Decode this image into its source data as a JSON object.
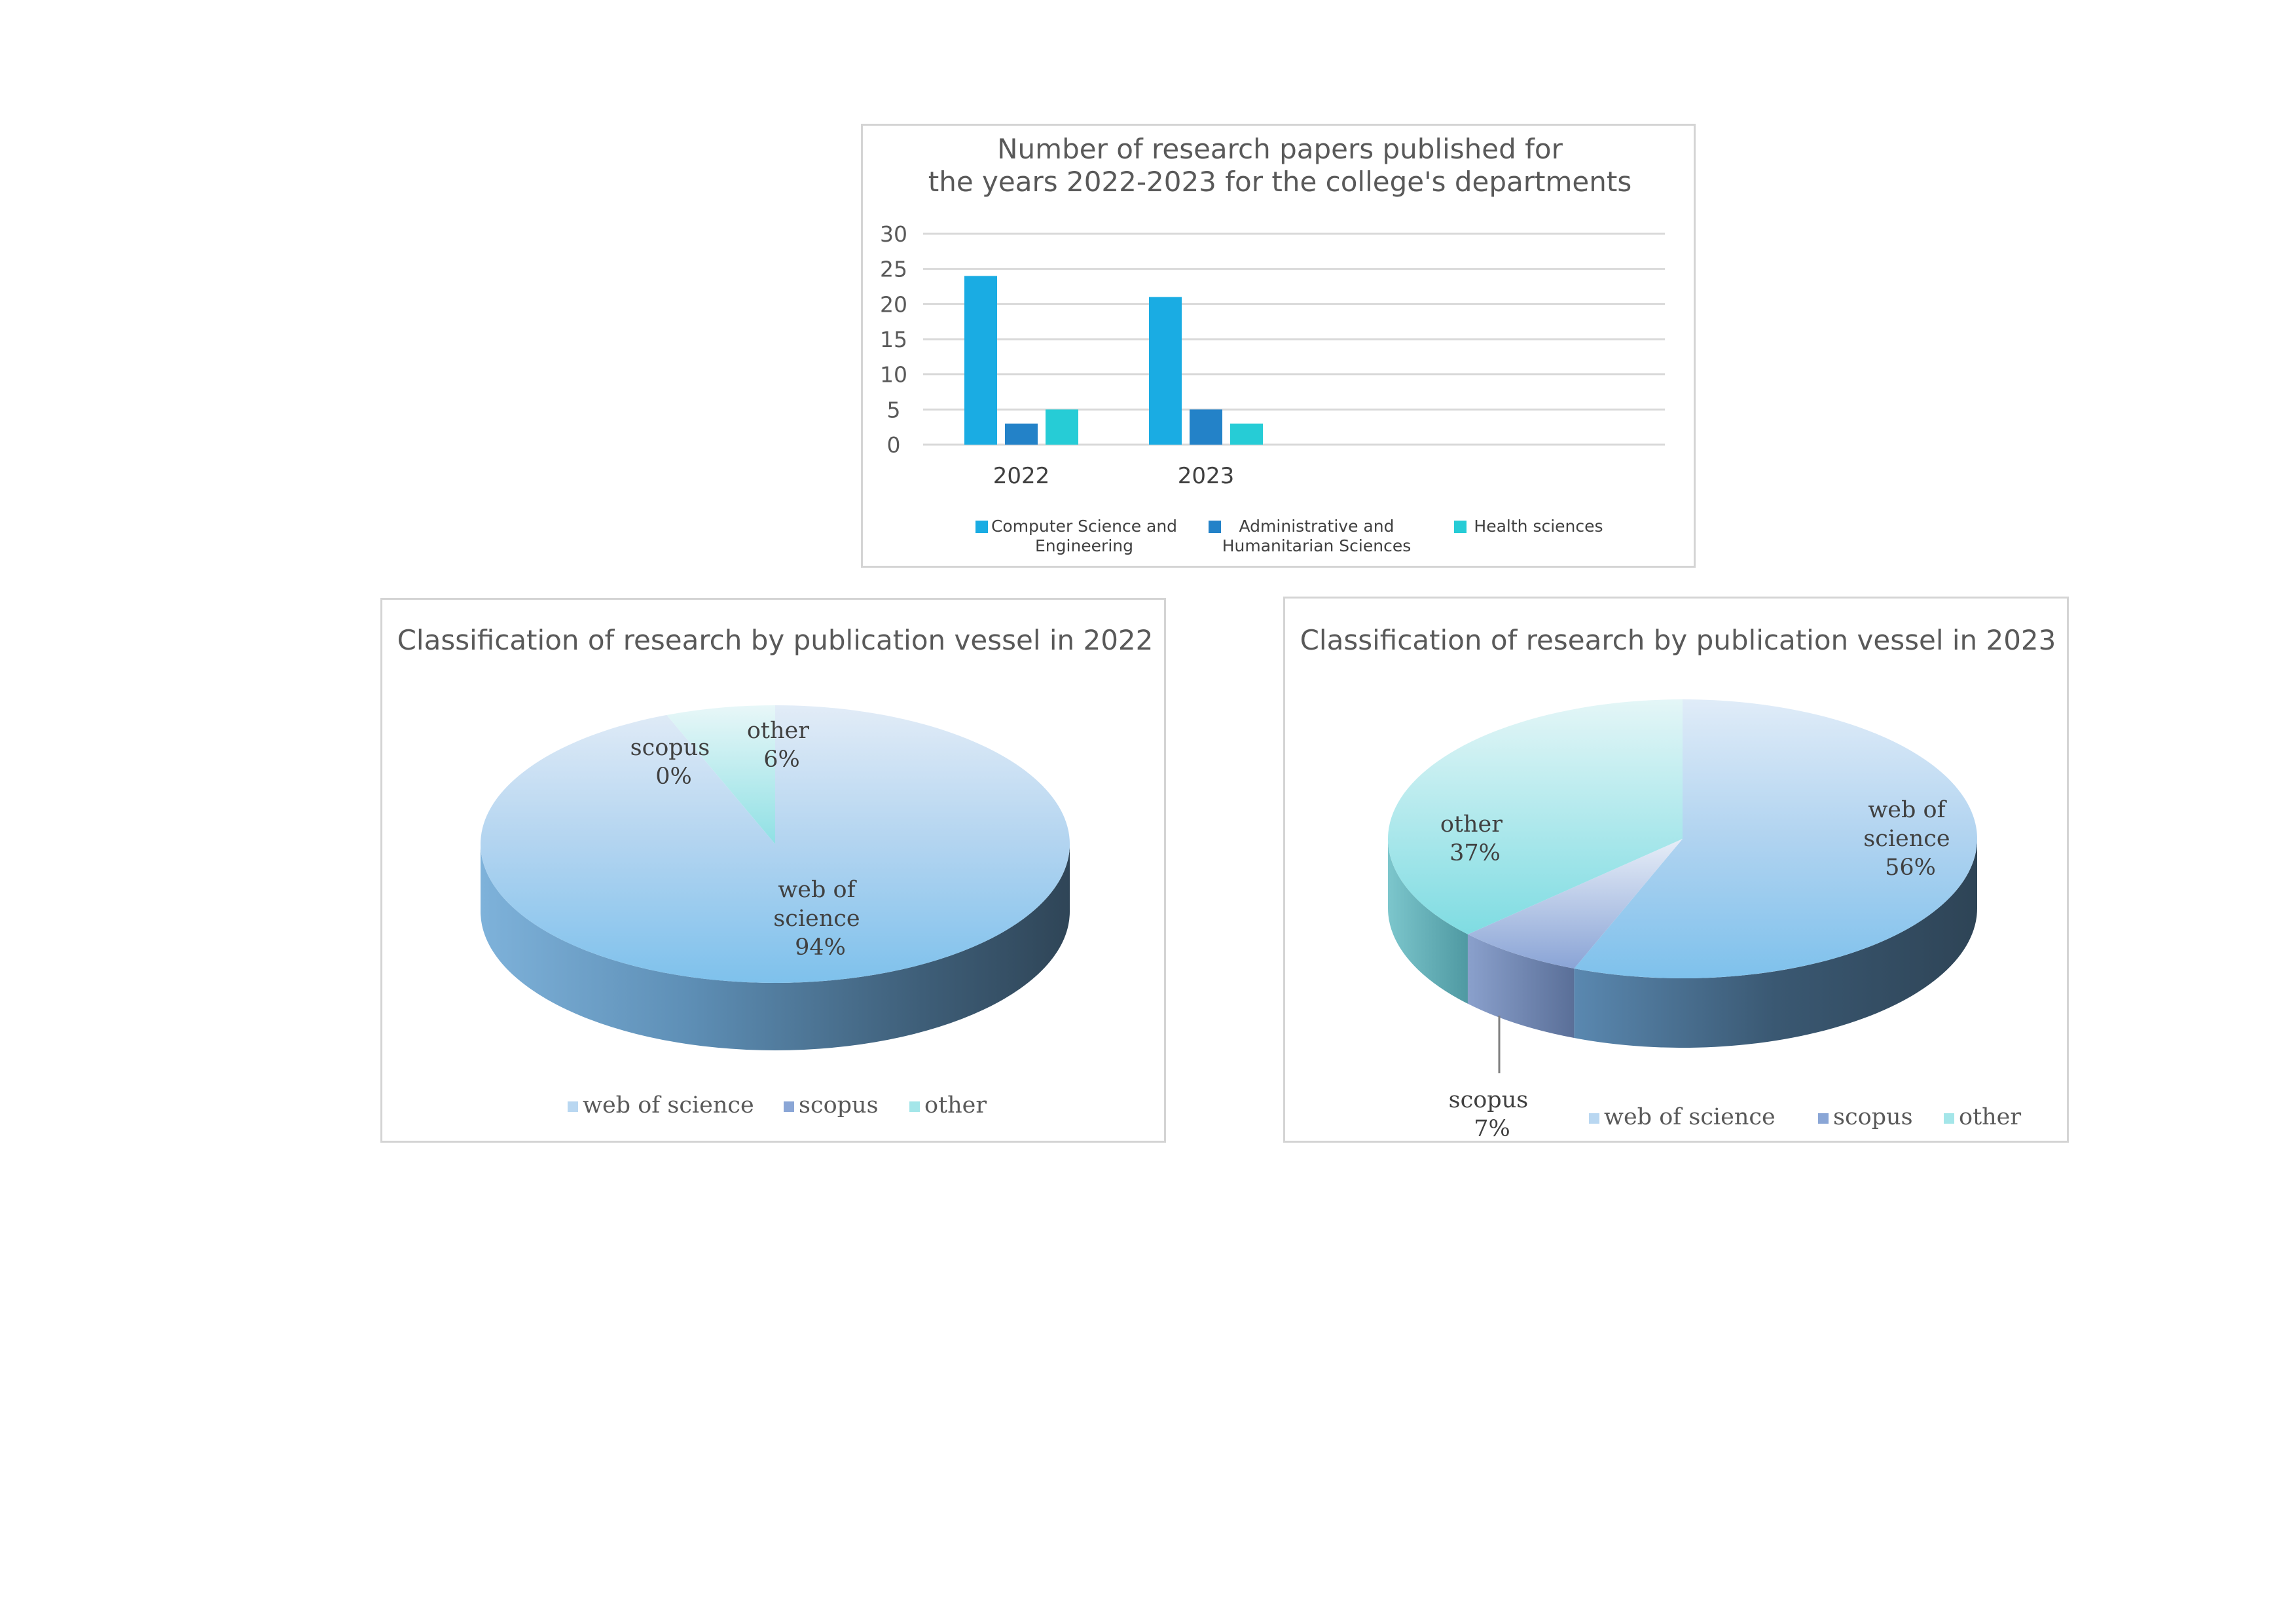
{
  "chart_data": [
    {
      "type": "bar",
      "title": "Number of research papers published for the years 2022-2023 for the college's departments",
      "title_lines": [
        "Number of research papers published for",
        "the years 2022-2023 for the college's departments"
      ],
      "categories": [
        "2022",
        "2023"
      ],
      "series": [
        {
          "name": "Computer Science and Engineering",
          "name_lines": [
            "Computer Science and",
            "Engineering"
          ],
          "values": [
            24,
            21
          ],
          "color": "#1aace3"
        },
        {
          "name": "Administrative and Humanitarian Sciences",
          "name_lines": [
            "Administrative and",
            "Humanitarian Sciences"
          ],
          "values": [
            3,
            5
          ],
          "color": "#2382c8"
        },
        {
          "name": "Health sciences",
          "name_lines": [
            "Health sciences"
          ],
          "values": [
            5,
            3
          ],
          "color": "#26ccd6"
        }
      ],
      "ylim": [
        0,
        30
      ],
      "yticks": [
        "0",
        "5",
        "10",
        "15",
        "20",
        "25",
        "30"
      ],
      "grid": true,
      "legend": "bottom"
    },
    {
      "type": "pie",
      "title": "Classification of research by publication vessel in 2022",
      "slices": [
        {
          "name": "web of science",
          "value": 94,
          "label_lines": [
            "web of",
            "science",
            "94%"
          ]
        },
        {
          "name": "scopus",
          "value": 0,
          "label_lines": [
            "scopus",
            "0%"
          ]
        },
        {
          "name": "other",
          "value": 6,
          "label_lines": [
            "other",
            "6%"
          ]
        }
      ],
      "legend_entries": [
        "web of science",
        "scopus",
        "other"
      ],
      "legend": "bottom",
      "style": "3d"
    },
    {
      "type": "pie",
      "title": "Classification of research by publication vessel in 2023",
      "slices": [
        {
          "name": "web of science",
          "value": 56,
          "label_lines": [
            "web of",
            "science",
            "56%"
          ]
        },
        {
          "name": "scopus",
          "value": 7,
          "label_lines": [
            "scopus",
            "7%"
          ]
        },
        {
          "name": "other",
          "value": 37,
          "label_lines": [
            "other",
            "37%"
          ]
        }
      ],
      "legend_entries": [
        "web of science",
        "scopus",
        "other"
      ],
      "legend": "bottom",
      "style": "3d"
    }
  ]
}
